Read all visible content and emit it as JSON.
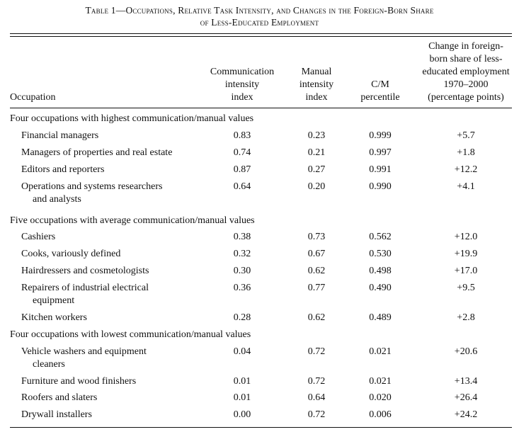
{
  "title": {
    "line1": "Table 1—Occupations, Relative Task Intensity, and Changes in the Foreign-Born Share",
    "line2": "of Less-Educated Employment"
  },
  "headers": {
    "occupation": "Occupation",
    "comm": [
      "Communication",
      "intensity",
      "index"
    ],
    "manual": [
      "Manual",
      "intensity",
      "index"
    ],
    "cm": [
      "C/M",
      "percentile"
    ],
    "change": [
      "Change in foreign-",
      "born share of less-",
      "educated employment",
      "1970–2000",
      "(percentage points)"
    ]
  },
  "sections": [
    {
      "label": "Four occupations with highest communication/manual values",
      "rows": [
        {
          "occ": [
            "Financial managers"
          ],
          "comm": "0.83",
          "manual": "0.23",
          "cm": "0.999",
          "change": "+5.7"
        },
        {
          "occ": [
            "Managers of properties and real estate"
          ],
          "comm": "0.74",
          "manual": "0.21",
          "cm": "0.997",
          "change": "+1.8"
        },
        {
          "occ": [
            "Editors and reporters"
          ],
          "comm": "0.87",
          "manual": "0.27",
          "cm": "0.991",
          "change": "+12.2"
        },
        {
          "occ": [
            "Operations and systems researchers",
            "and analysts"
          ],
          "comm": "0.64",
          "manual": "0.20",
          "cm": "0.990",
          "change": "+4.1"
        }
      ]
    },
    {
      "label": "Five occupations with average communication/manual values",
      "rows": [
        {
          "occ": [
            "Cashiers"
          ],
          "comm": "0.38",
          "manual": "0.73",
          "cm": "0.562",
          "change": "+12.0"
        },
        {
          "occ": [
            "Cooks, variously defined"
          ],
          "comm": "0.32",
          "manual": "0.67",
          "cm": "0.530",
          "change": "+19.9"
        },
        {
          "occ": [
            "Hairdressers and cosmetologists"
          ],
          "comm": "0.30",
          "manual": "0.62",
          "cm": "0.498",
          "change": "+17.0"
        },
        {
          "occ": [
            "Repairers of industrial electrical",
            "equipment"
          ],
          "comm": "0.36",
          "manual": "0.77",
          "cm": "0.490",
          "change": "+9.5"
        },
        {
          "occ": [
            "Kitchen workers"
          ],
          "comm": "0.28",
          "manual": "0.62",
          "cm": "0.489",
          "change": "+2.8"
        }
      ]
    },
    {
      "label": "Four occupations with lowest communication/manual values",
      "rows": [
        {
          "occ": [
            "Vehicle washers and equipment",
            "cleaners"
          ],
          "comm": "0.04",
          "manual": "0.72",
          "cm": "0.021",
          "change": "+20.6"
        },
        {
          "occ": [
            "Furniture and wood finishers"
          ],
          "comm": "0.01",
          "manual": "0.72",
          "cm": "0.021",
          "change": "+13.4"
        },
        {
          "occ": [
            "Roofers and slaters"
          ],
          "comm": "0.01",
          "manual": "0.64",
          "cm": "0.020",
          "change": "+26.4"
        },
        {
          "occ": [
            "Drywall installers"
          ],
          "comm": "0.00",
          "manual": "0.72",
          "cm": "0.006",
          "change": "+24.2"
        }
      ]
    }
  ]
}
